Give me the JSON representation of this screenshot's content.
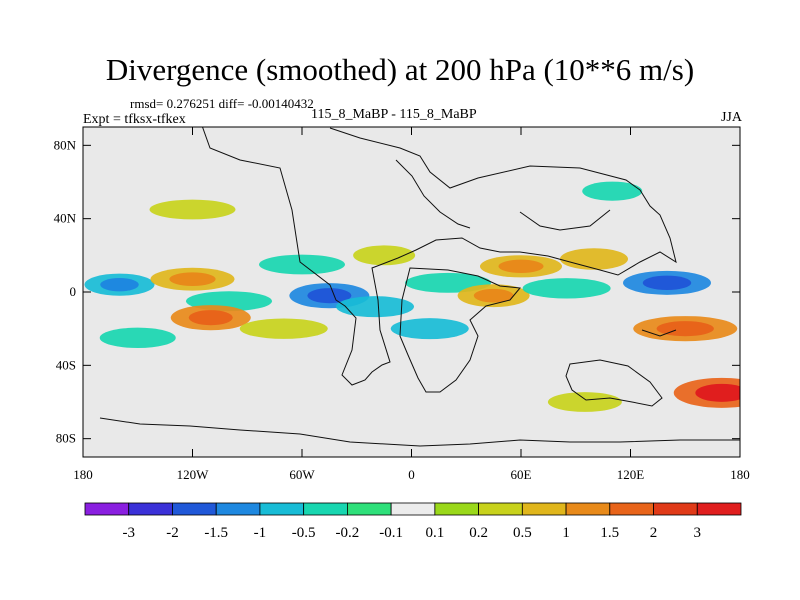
{
  "chart_data": {
    "type": "heatmap",
    "title": "Divergence (smoothed) at 200 hPa (10**6 m/s)",
    "stats_text": "rmsd= 0.276251  diff= -0.00140432",
    "experiment_label": "Expt = tfksx-tfkex",
    "case_label": "115_8_MaBP - 115_8_MaBP",
    "season": "JJA",
    "x_axis": {
      "range": [
        -180,
        180
      ],
      "ticks": [
        -180,
        -120,
        -60,
        0,
        60,
        120,
        180
      ],
      "tick_labels": [
        "180",
        "120W",
        "60W",
        "0",
        "60E",
        "120E",
        "180"
      ]
    },
    "y_axis": {
      "range": [
        -90,
        90
      ],
      "ticks": [
        80,
        40,
        0,
        -40,
        -80
      ],
      "tick_labels": [
        "80N",
        "40N",
        "0",
        "40S",
        "80S"
      ]
    },
    "colorbar": {
      "levels": [
        "-3",
        "-2",
        "-1.5",
        "-1",
        "-0.5",
        "-0.2",
        "-0.1",
        "0.1",
        "0.2",
        "0.5",
        "1",
        "1.5",
        "2",
        "3"
      ],
      "colors": [
        "#8a1fe0",
        "#3b31d8",
        "#2058d8",
        "#1e88e0",
        "#18bcd6",
        "#18d6b0",
        "#2ee07a",
        "#ececec",
        "#9ad81a",
        "#c8d21c",
        "#e0b61c",
        "#e88a1a",
        "#e8641a",
        "#e03a18",
        "#e01e1e"
      ]
    },
    "fields": [
      {
        "lon": -160,
        "lat": 4,
        "value": -0.7
      },
      {
        "lon": -120,
        "lat": 7,
        "value": 0.8
      },
      {
        "lon": -100,
        "lat": -5,
        "value": -0.3
      },
      {
        "lon": -110,
        "lat": -14,
        "value": 1.2
      },
      {
        "lon": -150,
        "lat": -25,
        "value": -0.4
      },
      {
        "lon": -60,
        "lat": 15,
        "value": -0.3
      },
      {
        "lon": -45,
        "lat": -2,
        "value": -1.2
      },
      {
        "lon": -20,
        "lat": -8,
        "value": -0.5
      },
      {
        "lon": -70,
        "lat": -20,
        "value": 0.4
      },
      {
        "lon": -15,
        "lat": 20,
        "value": 0.3
      },
      {
        "lon": 10,
        "lat": -20,
        "value": -0.5
      },
      {
        "lon": 20,
        "lat": 5,
        "value": -0.3
      },
      {
        "lon": 45,
        "lat": -2,
        "value": 0.8
      },
      {
        "lon": 60,
        "lat": 14,
        "value": 0.7
      },
      {
        "lon": 85,
        "lat": 2,
        "value": -0.4
      },
      {
        "lon": 100,
        "lat": 18,
        "value": 0.6
      },
      {
        "lon": 140,
        "lat": 5,
        "value": -1.0
      },
      {
        "lon": 150,
        "lat": -20,
        "value": 1.2
      },
      {
        "lon": 170,
        "lat": -55,
        "value": 2.0
      },
      {
        "lon": 95,
        "lat": -60,
        "value": 0.3
      },
      {
        "lon": -120,
        "lat": 45,
        "value": 0.3
      },
      {
        "lon": 110,
        "lat": 55,
        "value": -0.2
      }
    ]
  }
}
